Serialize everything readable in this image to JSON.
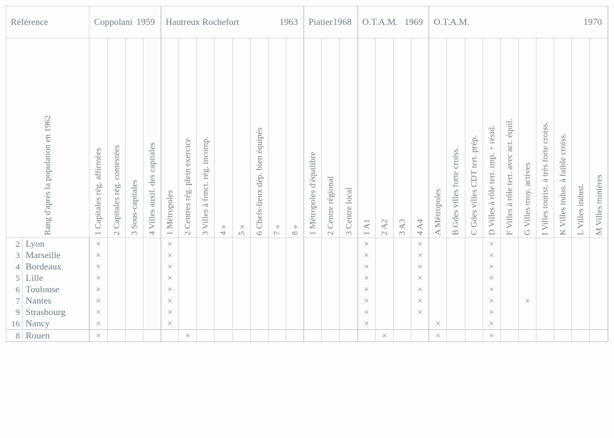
{
  "reference_label": "Référence",
  "rank_label": "Rang d'après la population en 1962",
  "mark": "×",
  "groups": [
    {
      "title": "Coppolani",
      "year": "1959",
      "cols": [
        "1 Capitales rég. affirmées",
        "2 Capitales rég. contestées",
        "3 Sous-capitales",
        "4 Villes auxil. des capitales"
      ]
    },
    {
      "title": "Hautreux Rochefort",
      "year": "1963",
      "cols": [
        "1 Métropoles",
        "2 Centres rég. plein exercice",
        "3 Villes à fonct. rég. incomp.",
        "4     »",
        "5     »",
        "6 Chefs-lieux dép. bien équipés",
        "7     »",
        "8     »"
      ]
    },
    {
      "title": "Piatier",
      "year": "1968",
      "cols": [
        "1 Métropoles d'équilibre",
        "2 Centre régional",
        "3 Centre local"
      ]
    },
    {
      "title": "O.T.A.M.",
      "year": "1969",
      "cols": [
        "1 A1",
        "2 A2",
        "3 A3",
        "4 A4"
      ]
    },
    {
      "title": "O.T.A.M.",
      "year": "1970",
      "cols": [
        "A Métropoles",
        "B Gdes villes forte croiss.",
        "C Gdes villes CDT tert. prép.",
        "D Villes à rôle tert. imp. + résid.",
        "F Villes à rôle tert. avec act. équil.",
        "G Villes moy. actives",
        "I Villes tourist. à très forte croiss.",
        "K Villes indus. à faible croiss.",
        "L Villes indust.",
        "M Villes minières"
      ]
    }
  ],
  "rows_main": [
    {
      "rank": 2,
      "city": "Lyon",
      "marks": [
        0,
        4,
        15,
        18,
        22
      ]
    },
    {
      "rank": 3,
      "city": "Marseille",
      "marks": [
        0,
        4,
        15,
        18,
        22
      ]
    },
    {
      "rank": 4,
      "city": "Bordeaux",
      "marks": [
        0,
        4,
        15,
        18,
        22
      ]
    },
    {
      "rank": 5,
      "city": "Lille",
      "marks": [
        0,
        4,
        15,
        18,
        22
      ]
    },
    {
      "rank": 6,
      "city": "Toulouse",
      "marks": [
        0,
        4,
        15,
        18,
        22
      ]
    },
    {
      "rank": 7,
      "city": "Nantes",
      "marks": [
        0,
        4,
        15,
        18,
        22,
        24
      ]
    },
    {
      "rank": 9,
      "city": "Strasbourg",
      "marks": [
        0,
        4,
        15,
        18,
        22
      ]
    },
    {
      "rank": 16,
      "city": "Nancy",
      "marks": [
        0,
        4,
        15,
        19,
        22
      ]
    }
  ],
  "rows_sep": [
    {
      "rank": 8,
      "city": "Rouen",
      "marks": [
        0,
        5,
        16,
        19,
        22
      ]
    }
  ]
}
